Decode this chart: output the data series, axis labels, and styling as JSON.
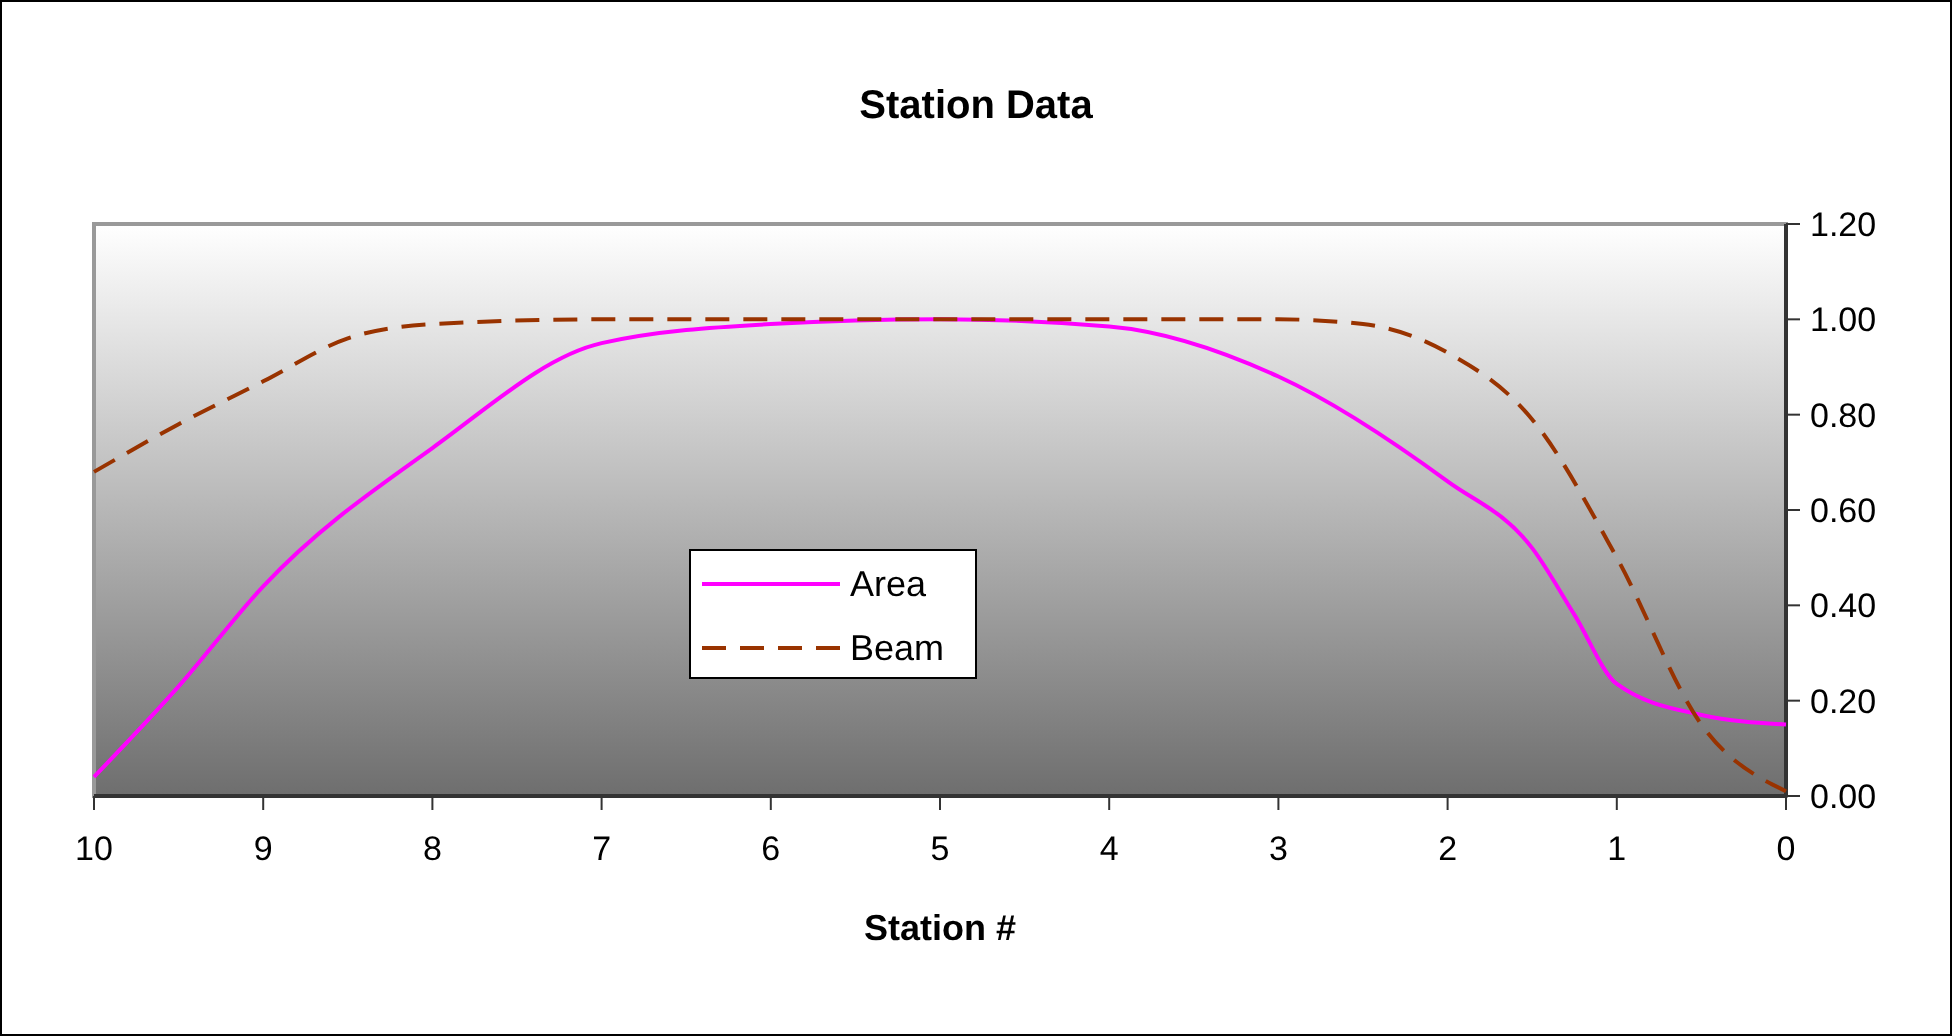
{
  "chart_data": {
    "type": "line",
    "title": "Station Data",
    "xlabel": "Station #",
    "xlim": [
      10,
      0
    ],
    "xticks": [
      10,
      9,
      8,
      7,
      6,
      5,
      4,
      3,
      2,
      1,
      0
    ],
    "ylim": [
      0,
      1.2
    ],
    "yticks": [
      {
        "value": 0,
        "label": "0.00"
      },
      {
        "value": 0.2,
        "label": "0.20"
      },
      {
        "value": 0.4,
        "label": "0.40"
      },
      {
        "value": 0.6,
        "label": "0.60"
      },
      {
        "value": 0.8,
        "label": "0.80"
      },
      {
        "value": 1,
        "label": "1.00"
      },
      {
        "value": 1.2,
        "label": "1.20"
      }
    ],
    "grid": false,
    "legend": "center",
    "series": [
      {
        "name": "Area",
        "color": "#ff00ff",
        "line_style": "solid",
        "x": [
          10,
          9.5,
          9,
          8,
          7,
          6,
          5,
          4,
          3,
          2,
          1.5,
          1.25,
          1,
          0.5,
          0
        ],
        "values": [
          0.04,
          0.23,
          0.44,
          0.73,
          0.95,
          0.99,
          1.0,
          0.985,
          0.88,
          0.66,
          0.52,
          0.38,
          0.235,
          0.17,
          0.15
        ]
      },
      {
        "name": "Beam",
        "color": "#993300",
        "line_style": "dashed",
        "x": [
          10,
          9.5,
          9,
          8.5,
          8,
          7,
          6,
          5,
          4,
          3,
          2.5,
          2,
          1.5,
          1,
          0.5,
          0
        ],
        "values": [
          0.68,
          0.78,
          0.87,
          0.96,
          0.99,
          1.0,
          1.0,
          1.0,
          1.0,
          1.0,
          0.99,
          0.93,
          0.79,
          0.5,
          0.15,
          0.01
        ]
      }
    ]
  }
}
